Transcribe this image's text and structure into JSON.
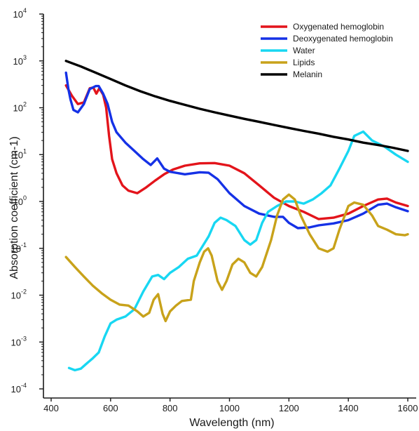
{
  "chart_data": {
    "type": "line",
    "xlabel": "Wavelength (nm)",
    "ylabel": "Absorption coefficient (cm-1)",
    "x_scale": "linear",
    "y_scale": "log",
    "xlim": [
      380,
      1620
    ],
    "ylim": [
      0.0001,
      10000
    ],
    "x_ticks": [
      {
        "value": 400,
        "label": "400"
      },
      {
        "value": 600,
        "label": "600"
      },
      {
        "value": 800,
        "label": "800"
      },
      {
        "value": 1000,
        "label": "1000"
      },
      {
        "value": 1200,
        "label": "1200"
      },
      {
        "value": 1400,
        "label": "1400"
      },
      {
        "value": 1600,
        "label": "1600"
      }
    ],
    "y_ticks": [
      {
        "value": 10000,
        "base": "10",
        "exp": "4"
      },
      {
        "value": 1000,
        "base": "10",
        "exp": "3"
      },
      {
        "value": 100,
        "base": "10",
        "exp": "2"
      },
      {
        "value": 10,
        "base": "10",
        "exp": "1"
      },
      {
        "value": 1,
        "base": "10",
        "exp": "0"
      },
      {
        "value": 0.1,
        "base": "10",
        "exp": "-1"
      },
      {
        "value": 0.01,
        "base": "10",
        "exp": "-2"
      },
      {
        "value": 0.001,
        "base": "10",
        "exp": "-3"
      },
      {
        "value": 0.0001,
        "base": "10",
        "exp": "-4"
      }
    ],
    "grid": false,
    "legend_position": "top-right",
    "series": [
      {
        "name": "Oxygenated hemoglobin",
        "color": "#e3141b",
        "points": [
          [
            450,
            300
          ],
          [
            470,
            180
          ],
          [
            490,
            120
          ],
          [
            510,
            130
          ],
          [
            530,
            260
          ],
          [
            542,
            270
          ],
          [
            552,
            200
          ],
          [
            562,
            260
          ],
          [
            575,
            190
          ],
          [
            585,
            100
          ],
          [
            595,
            25
          ],
          [
            605,
            8
          ],
          [
            620,
            4
          ],
          [
            640,
            2.2
          ],
          [
            660,
            1.7
          ],
          [
            690,
            1.5
          ],
          [
            720,
            2
          ],
          [
            750,
            2.8
          ],
          [
            780,
            3.8
          ],
          [
            810,
            4.8
          ],
          [
            850,
            5.8
          ],
          [
            900,
            6.5
          ],
          [
            950,
            6.6
          ],
          [
            1000,
            5.8
          ],
          [
            1050,
            4
          ],
          [
            1100,
            2.2
          ],
          [
            1150,
            1.2
          ],
          [
            1200,
            0.8
          ],
          [
            1250,
            0.6
          ],
          [
            1300,
            0.42
          ],
          [
            1350,
            0.45
          ],
          [
            1400,
            0.55
          ],
          [
            1450,
            0.8
          ],
          [
            1500,
            1.1
          ],
          [
            1530,
            1.15
          ],
          [
            1560,
            0.95
          ],
          [
            1600,
            0.8
          ]
        ]
      },
      {
        "name": "Deoxygenated hemoglobin",
        "color": "#1531e6",
        "points": [
          [
            450,
            560
          ],
          [
            458,
            250
          ],
          [
            465,
            150
          ],
          [
            475,
            90
          ],
          [
            490,
            80
          ],
          [
            510,
            120
          ],
          [
            530,
            250
          ],
          [
            550,
            290
          ],
          [
            560,
            290
          ],
          [
            575,
            200
          ],
          [
            590,
            120
          ],
          [
            605,
            50
          ],
          [
            620,
            30
          ],
          [
            650,
            18
          ],
          [
            680,
            12
          ],
          [
            710,
            8
          ],
          [
            735,
            6
          ],
          [
            757,
            8.3
          ],
          [
            780,
            5
          ],
          [
            800,
            4.3
          ],
          [
            850,
            3.8
          ],
          [
            900,
            4.2
          ],
          [
            930,
            4.1
          ],
          [
            960,
            3
          ],
          [
            1000,
            1.5
          ],
          [
            1050,
            0.8
          ],
          [
            1100,
            0.55
          ],
          [
            1150,
            0.47
          ],
          [
            1180,
            0.47
          ],
          [
            1200,
            0.35
          ],
          [
            1230,
            0.27
          ],
          [
            1270,
            0.28
          ],
          [
            1300,
            0.31
          ],
          [
            1350,
            0.34
          ],
          [
            1400,
            0.4
          ],
          [
            1450,
            0.55
          ],
          [
            1500,
            0.85
          ],
          [
            1530,
            0.9
          ],
          [
            1560,
            0.75
          ],
          [
            1600,
            0.62
          ]
        ]
      },
      {
        "name": "Water",
        "color": "#18d7f2",
        "points": [
          [
            460,
            0.00028
          ],
          [
            480,
            0.00025
          ],
          [
            500,
            0.00027
          ],
          [
            520,
            0.00035
          ],
          [
            540,
            0.00045
          ],
          [
            560,
            0.0006
          ],
          [
            580,
            0.0013
          ],
          [
            600,
            0.0025
          ],
          [
            620,
            0.003
          ],
          [
            650,
            0.0035
          ],
          [
            680,
            0.005
          ],
          [
            710,
            0.012
          ],
          [
            740,
            0.025
          ],
          [
            760,
            0.027
          ],
          [
            780,
            0.022
          ],
          [
            800,
            0.03
          ],
          [
            830,
            0.04
          ],
          [
            860,
            0.06
          ],
          [
            890,
            0.07
          ],
          [
            930,
            0.18
          ],
          [
            950,
            0.35
          ],
          [
            970,
            0.45
          ],
          [
            990,
            0.4
          ],
          [
            1020,
            0.3
          ],
          [
            1050,
            0.15
          ],
          [
            1070,
            0.12
          ],
          [
            1090,
            0.15
          ],
          [
            1110,
            0.35
          ],
          [
            1130,
            0.6
          ],
          [
            1160,
            0.8
          ],
          [
            1190,
            1
          ],
          [
            1220,
            1
          ],
          [
            1250,
            0.9
          ],
          [
            1280,
            1.1
          ],
          [
            1310,
            1.5
          ],
          [
            1340,
            2.2
          ],
          [
            1370,
            5
          ],
          [
            1400,
            12
          ],
          [
            1420,
            25
          ],
          [
            1450,
            31
          ],
          [
            1480,
            20
          ],
          [
            1520,
            15
          ],
          [
            1560,
            10
          ],
          [
            1600,
            7
          ]
        ]
      },
      {
        "name": "Lipids",
        "color": "#c8a21a",
        "points": [
          [
            450,
            0.065
          ],
          [
            480,
            0.04
          ],
          [
            510,
            0.025
          ],
          [
            540,
            0.016
          ],
          [
            570,
            0.011
          ],
          [
            600,
            0.008
          ],
          [
            630,
            0.0063
          ],
          [
            660,
            0.006
          ],
          [
            690,
            0.0045
          ],
          [
            710,
            0.0035
          ],
          [
            730,
            0.0042
          ],
          [
            745,
            0.008
          ],
          [
            760,
            0.0105
          ],
          [
            775,
            0.004
          ],
          [
            785,
            0.0028
          ],
          [
            800,
            0.0045
          ],
          [
            820,
            0.006
          ],
          [
            840,
            0.0075
          ],
          [
            870,
            0.008
          ],
          [
            880,
            0.02
          ],
          [
            900,
            0.05
          ],
          [
            915,
            0.085
          ],
          [
            928,
            0.1
          ],
          [
            940,
            0.07
          ],
          [
            960,
            0.02
          ],
          [
            975,
            0.013
          ],
          [
            990,
            0.02
          ],
          [
            1010,
            0.045
          ],
          [
            1030,
            0.06
          ],
          [
            1050,
            0.05
          ],
          [
            1070,
            0.03
          ],
          [
            1090,
            0.025
          ],
          [
            1110,
            0.04
          ],
          [
            1140,
            0.15
          ],
          [
            1160,
            0.5
          ],
          [
            1180,
            1.1
          ],
          [
            1200,
            1.4
          ],
          [
            1220,
            1.1
          ],
          [
            1240,
            0.5
          ],
          [
            1270,
            0.2
          ],
          [
            1300,
            0.1
          ],
          [
            1330,
            0.085
          ],
          [
            1350,
            0.1
          ],
          [
            1370,
            0.25
          ],
          [
            1400,
            0.8
          ],
          [
            1420,
            0.95
          ],
          [
            1450,
            0.85
          ],
          [
            1480,
            0.5
          ],
          [
            1500,
            0.3
          ],
          [
            1530,
            0.25
          ],
          [
            1560,
            0.2
          ],
          [
            1590,
            0.19
          ],
          [
            1600,
            0.2
          ]
        ]
      },
      {
        "name": "Melanin",
        "color": "#000000",
        "points": [
          [
            450,
            1000
          ],
          [
            500,
            760
          ],
          [
            550,
            560
          ],
          [
            600,
            410
          ],
          [
            650,
            300
          ],
          [
            700,
            225
          ],
          [
            750,
            175
          ],
          [
            800,
            140
          ],
          [
            850,
            115
          ],
          [
            900,
            95
          ],
          [
            950,
            80
          ],
          [
            1000,
            68
          ],
          [
            1050,
            58
          ],
          [
            1100,
            50
          ],
          [
            1150,
            43
          ],
          [
            1200,
            37
          ],
          [
            1250,
            32
          ],
          [
            1300,
            28
          ],
          [
            1350,
            24
          ],
          [
            1400,
            21
          ],
          [
            1450,
            18
          ],
          [
            1500,
            16
          ],
          [
            1550,
            14
          ],
          [
            1600,
            12
          ]
        ]
      }
    ]
  }
}
